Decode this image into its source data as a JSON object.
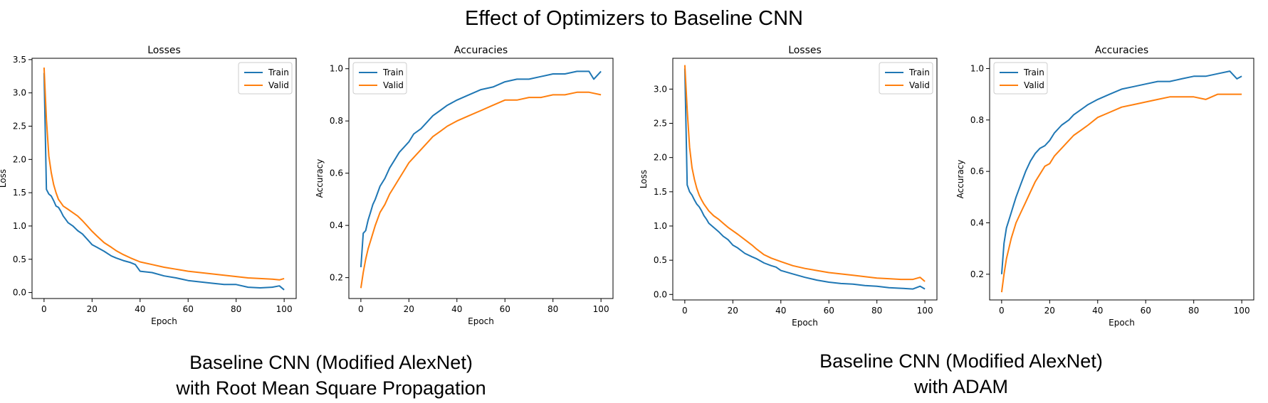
{
  "title": "Effect of Optimizers to Baseline CNN",
  "captions": {
    "left_line1": "Baseline CNN (Modified AlexNet)",
    "left_line2": "with Root Mean Square Propagation",
    "right_line1": "Baseline CNN (Modified AlexNet)",
    "right_line2": "with ADAM"
  },
  "colors": {
    "train": "#1f77b4",
    "valid": "#ff7f0e"
  },
  "chart_data": [
    {
      "type": "line",
      "title": "Losses",
      "xlabel": "Epoch",
      "ylabel": "Loss",
      "xlim": [
        -5,
        105
      ],
      "ylim": [
        -0.09,
        3.52
      ],
      "xticks": [
        0,
        20,
        40,
        60,
        80,
        100
      ],
      "xtick_labels": [
        "0",
        "20",
        "40",
        "60",
        "80",
        "100"
      ],
      "yticks": [
        0,
        0.5,
        1.0,
        1.5,
        2.0,
        2.5,
        3.0,
        3.5
      ],
      "ytick_labels": [
        "0.0",
        "0.5",
        "1.0",
        "1.5",
        "2.0",
        "2.5",
        "3.0",
        "3.5"
      ],
      "legend": "top-right",
      "series": [
        {
          "name": "Train",
          "x": [
            0,
            1,
            2,
            3,
            4,
            5,
            6,
            7,
            8,
            9,
            10,
            12,
            14,
            16,
            18,
            20,
            22,
            25,
            28,
            30,
            33,
            36,
            38,
            40,
            45,
            50,
            55,
            60,
            65,
            70,
            75,
            80,
            85,
            90,
            95,
            98,
            100
          ],
          "y": [
            3.3,
            1.55,
            1.48,
            1.45,
            1.38,
            1.3,
            1.28,
            1.22,
            1.15,
            1.1,
            1.05,
            1.0,
            0.93,
            0.88,
            0.8,
            0.72,
            0.68,
            0.62,
            0.55,
            0.52,
            0.48,
            0.45,
            0.42,
            0.32,
            0.3,
            0.25,
            0.22,
            0.18,
            0.16,
            0.14,
            0.12,
            0.12,
            0.08,
            0.07,
            0.08,
            0.1,
            0.04
          ]
        },
        {
          "name": "Valid",
          "x": [
            0,
            1,
            2,
            3,
            4,
            5,
            6,
            7,
            8,
            10,
            12,
            14,
            16,
            18,
            20,
            22,
            25,
            28,
            30,
            33,
            36,
            40,
            45,
            50,
            55,
            60,
            65,
            70,
            75,
            80,
            85,
            90,
            95,
            98,
            100
          ],
          "y": [
            3.38,
            2.6,
            2.05,
            1.8,
            1.62,
            1.5,
            1.4,
            1.35,
            1.3,
            1.25,
            1.2,
            1.15,
            1.08,
            1.0,
            0.92,
            0.85,
            0.75,
            0.68,
            0.63,
            0.57,
            0.52,
            0.46,
            0.42,
            0.38,
            0.35,
            0.32,
            0.3,
            0.28,
            0.26,
            0.24,
            0.22,
            0.21,
            0.2,
            0.19,
            0.21
          ]
        }
      ]
    },
    {
      "type": "line",
      "title": "Accuracies",
      "xlabel": "Epoch",
      "ylabel": "Accuracy",
      "xlim": [
        -5,
        105
      ],
      "ylim": [
        0.12,
        1.04
      ],
      "xticks": [
        0,
        20,
        40,
        60,
        80,
        100
      ],
      "xtick_labels": [
        "0",
        "20",
        "40",
        "60",
        "80",
        "100"
      ],
      "yticks": [
        0.2,
        0.4,
        0.6,
        0.8,
        1.0
      ],
      "ytick_labels": [
        "0.2",
        "0.4",
        "0.6",
        "0.8",
        "1.0"
      ],
      "legend": "top-left",
      "series": [
        {
          "name": "Train",
          "x": [
            0,
            1,
            2,
            3,
            4,
            5,
            6,
            8,
            10,
            12,
            14,
            16,
            18,
            20,
            22,
            25,
            28,
            30,
            33,
            36,
            40,
            45,
            50,
            55,
            60,
            65,
            70,
            75,
            80,
            85,
            90,
            95,
            97,
            100
          ],
          "y": [
            0.24,
            0.37,
            0.38,
            0.42,
            0.45,
            0.48,
            0.5,
            0.55,
            0.58,
            0.62,
            0.65,
            0.68,
            0.7,
            0.72,
            0.75,
            0.77,
            0.8,
            0.82,
            0.84,
            0.86,
            0.88,
            0.9,
            0.92,
            0.93,
            0.95,
            0.96,
            0.96,
            0.97,
            0.98,
            0.98,
            0.99,
            0.99,
            0.96,
            0.99
          ]
        },
        {
          "name": "Valid",
          "x": [
            0,
            1,
            2,
            3,
            4,
            6,
            8,
            10,
            12,
            14,
            16,
            18,
            20,
            22,
            25,
            28,
            30,
            33,
            36,
            40,
            45,
            50,
            55,
            60,
            65,
            70,
            75,
            80,
            85,
            90,
            95,
            100
          ],
          "y": [
            0.16,
            0.22,
            0.27,
            0.31,
            0.34,
            0.4,
            0.45,
            0.48,
            0.52,
            0.55,
            0.58,
            0.61,
            0.64,
            0.66,
            0.69,
            0.72,
            0.74,
            0.76,
            0.78,
            0.8,
            0.82,
            0.84,
            0.86,
            0.88,
            0.88,
            0.89,
            0.89,
            0.9,
            0.9,
            0.91,
            0.91,
            0.9
          ]
        }
      ]
    },
    {
      "type": "line",
      "title": "Losses",
      "xlabel": "Epoch",
      "ylabel": "Loss",
      "xlim": [
        -5,
        105
      ],
      "ylim": [
        -0.08,
        3.45
      ],
      "xticks": [
        0,
        20,
        40,
        60,
        80,
        100
      ],
      "xtick_labels": [
        "0",
        "20",
        "40",
        "60",
        "80",
        "100"
      ],
      "yticks": [
        0,
        0.5,
        1.0,
        1.5,
        2.0,
        2.5,
        3.0
      ],
      "ytick_labels": [
        "0.0",
        "0.5",
        "1.0",
        "1.5",
        "2.0",
        "2.5",
        "3.0"
      ],
      "legend": "top-right",
      "series": [
        {
          "name": "Train",
          "x": [
            0,
            1,
            2,
            3,
            4,
            5,
            6,
            7,
            8,
            9,
            10,
            12,
            14,
            16,
            18,
            20,
            22,
            25,
            28,
            30,
            33,
            36,
            38,
            40,
            45,
            50,
            55,
            60,
            65,
            70,
            75,
            80,
            85,
            90,
            95,
            98,
            100
          ],
          "y": [
            3.3,
            1.6,
            1.5,
            1.45,
            1.38,
            1.32,
            1.28,
            1.22,
            1.15,
            1.1,
            1.04,
            0.98,
            0.92,
            0.85,
            0.8,
            0.72,
            0.68,
            0.6,
            0.55,
            0.52,
            0.46,
            0.42,
            0.4,
            0.35,
            0.3,
            0.25,
            0.21,
            0.18,
            0.16,
            0.15,
            0.13,
            0.12,
            0.1,
            0.09,
            0.08,
            0.12,
            0.08
          ]
        },
        {
          "name": "Valid",
          "x": [
            0,
            1,
            2,
            3,
            4,
            5,
            6,
            7,
            8,
            10,
            12,
            14,
            16,
            18,
            20,
            22,
            25,
            28,
            30,
            33,
            36,
            40,
            45,
            50,
            55,
            60,
            65,
            70,
            75,
            80,
            85,
            90,
            95,
            98,
            100
          ],
          "y": [
            3.35,
            2.7,
            2.15,
            1.85,
            1.68,
            1.55,
            1.45,
            1.38,
            1.32,
            1.22,
            1.15,
            1.1,
            1.04,
            0.98,
            0.93,
            0.88,
            0.8,
            0.72,
            0.66,
            0.58,
            0.53,
            0.48,
            0.42,
            0.38,
            0.35,
            0.32,
            0.3,
            0.28,
            0.26,
            0.24,
            0.23,
            0.22,
            0.22,
            0.25,
            0.19
          ]
        }
      ]
    },
    {
      "type": "line",
      "title": "Accuracies",
      "xlabel": "Epoch",
      "ylabel": "Accuracy",
      "xlim": [
        -5,
        105
      ],
      "ylim": [
        0.1,
        1.04
      ],
      "xticks": [
        0,
        20,
        40,
        60,
        80,
        100
      ],
      "xtick_labels": [
        "0",
        "20",
        "40",
        "60",
        "80",
        "100"
      ],
      "yticks": [
        0.2,
        0.4,
        0.6,
        0.8,
        1.0
      ],
      "ytick_labels": [
        "0.2",
        "0.4",
        "0.6",
        "0.8",
        "1.0"
      ],
      "legend": "top-left",
      "series": [
        {
          "name": "Train",
          "x": [
            0,
            1,
            2,
            3,
            4,
            5,
            6,
            8,
            10,
            12,
            14,
            16,
            18,
            20,
            22,
            25,
            28,
            30,
            33,
            36,
            40,
            45,
            50,
            55,
            60,
            65,
            70,
            75,
            80,
            85,
            90,
            95,
            98,
            100
          ],
          "y": [
            0.2,
            0.32,
            0.38,
            0.41,
            0.44,
            0.47,
            0.5,
            0.55,
            0.6,
            0.64,
            0.67,
            0.69,
            0.7,
            0.72,
            0.75,
            0.78,
            0.8,
            0.82,
            0.84,
            0.86,
            0.88,
            0.9,
            0.92,
            0.93,
            0.94,
            0.95,
            0.95,
            0.96,
            0.97,
            0.97,
            0.98,
            0.99,
            0.96,
            0.97
          ]
        },
        {
          "name": "Valid",
          "x": [
            0,
            1,
            2,
            3,
            4,
            6,
            8,
            10,
            12,
            14,
            16,
            18,
            20,
            22,
            25,
            28,
            30,
            33,
            36,
            40,
            45,
            50,
            55,
            60,
            65,
            70,
            75,
            80,
            85,
            90,
            95,
            100
          ],
          "y": [
            0.13,
            0.2,
            0.26,
            0.3,
            0.34,
            0.4,
            0.44,
            0.48,
            0.52,
            0.56,
            0.59,
            0.62,
            0.63,
            0.66,
            0.69,
            0.72,
            0.74,
            0.76,
            0.78,
            0.81,
            0.83,
            0.85,
            0.86,
            0.87,
            0.88,
            0.89,
            0.89,
            0.89,
            0.88,
            0.9,
            0.9,
            0.9
          ]
        }
      ]
    }
  ]
}
